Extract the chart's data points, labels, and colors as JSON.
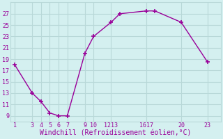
{
  "x": [
    1,
    3,
    4,
    5,
    6,
    7,
    9,
    10,
    12,
    13,
    16,
    17,
    20,
    23
  ],
  "y": [
    18,
    13,
    11.5,
    9.5,
    9,
    9,
    20,
    23,
    25.5,
    27,
    27.5,
    27.5,
    25.5,
    18.5
  ],
  "line_color": "#990099",
  "marker": "+",
  "marker_size": 5,
  "marker_lw": 1.2,
  "bg_color": "#d4f0f0",
  "grid_color": "#b8d8d8",
  "xlabel": "Windchill (Refroidissement éolien,°C)",
  "xlabel_color": "#990099",
  "tick_color": "#990099",
  "xlim": [
    0.5,
    24.5
  ],
  "ylim": [
    8,
    29
  ],
  "yticks": [
    9,
    11,
    13,
    15,
    17,
    19,
    21,
    23,
    25,
    27
  ],
  "ytick_labels": [
    "9",
    "11",
    "13",
    "15",
    "17",
    "19",
    "21",
    "23",
    "25",
    "27"
  ],
  "xtick_positions": [
    1,
    3,
    4,
    5,
    6,
    7,
    9,
    10,
    12,
    16,
    20,
    23
  ],
  "xtick_labels": [
    "1",
    "3",
    "4",
    "5",
    "6",
    "7",
    "9",
    "10",
    "1213",
    "1617",
    "20",
    "23"
  ],
  "font_family": "monospace",
  "label_fontsize": 6.0,
  "xlabel_fontsize": 7.0,
  "line_width": 1.0
}
